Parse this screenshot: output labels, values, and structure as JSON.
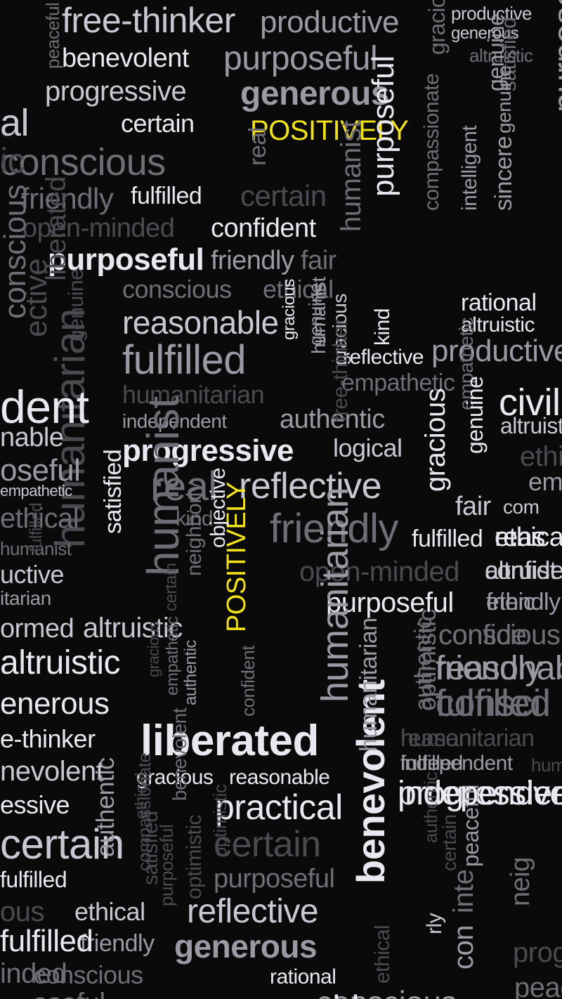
{
  "colors": {
    "background": "#0a0a0a",
    "accent_yellow": "#f2e21a",
    "text_light": "#e8e8f0",
    "text_mid": "#9a9aa4",
    "text_dark": "#4a4a50"
  },
  "words": [
    "free-thinker",
    "productive",
    "productive",
    "generous",
    "peaceful",
    "benevolent",
    "purposeful",
    "altruistic",
    "progressive",
    "generous",
    "certain",
    "POSITIVELY",
    "conscious",
    "friendly",
    "fulfilled",
    "certain",
    "open-minded",
    "confident",
    "purposeful",
    "friendly",
    "fair",
    "conscious",
    "ethical",
    "reasonable",
    "humanist",
    "rational",
    "altruistic",
    "fulfilled",
    "reflective",
    "productive",
    "empathetic",
    "humanitarian",
    "independent",
    "authentic",
    "progressive",
    "logical",
    "real",
    "reflective",
    "kind",
    "fair",
    "friendly",
    "fulfilled",
    "ethical",
    "open-minded",
    "confident",
    "purposeful",
    "friendly",
    "altruistic",
    "conscious",
    "reasonable",
    "fulfilled",
    "liberated",
    "humanitarian",
    "independent",
    "gracious",
    "reasonable",
    "practical",
    "progressive",
    "certain",
    "purposeful",
    "fulfilled",
    "reflective",
    "ethical",
    "generous",
    "friendly",
    "conscious",
    "rational",
    "POSITIVELY",
    "humanitarian",
    "objective",
    "satisfied",
    "purposeful",
    "humanitarian",
    "benevolent",
    "sincere",
    "compassionate",
    "intelligent",
    "genuine",
    "satisfied",
    "civil",
    "peaceful",
    "authentic",
    "kind",
    "empathetic",
    "ethical",
    "optimistic",
    "gracious",
    "genuine",
    "humanist",
    "dent",
    "nable",
    "oseful",
    "empathetic",
    "ethical",
    "humanist",
    "uctive",
    "itarian",
    "ormed",
    "altruistic",
    "enerous",
    "e-thinker",
    "nevolent",
    "essive",
    "certain",
    "ous",
    "fulfilled",
    "inded",
    "oseful",
    "conscious",
    "reasonable",
    "al",
    "ic",
    "ective",
    "conscious",
    "genuine",
    "benevolent",
    "ethical",
    "gracious",
    "optimistic",
    "genuine",
    "gracious",
    "altruistic",
    "ethical",
    "empath",
    "com",
    "reas",
    "altruist",
    "ethic",
    "confide",
    "friendly",
    "consci",
    "reasoni",
    "fulfilled",
    "humanitarian",
    "independent",
    "neig",
    "progressi",
    "peaceful",
    "con",
    "inte",
    "rly",
    "certain",
    "satisfied",
    "authentic",
    "compassionate",
    "purposeful",
    "optimistic",
    "empathetic",
    "authentic",
    "confident",
    "gracious",
    "free-thinker",
    "authentic",
    "humanitarian",
    "fulfilled",
    "gracious",
    "humanist",
    "liberated",
    "real",
    "genuine",
    "purposeful",
    "certain",
    "neighborly",
    "ethical",
    "kind"
  ]
}
